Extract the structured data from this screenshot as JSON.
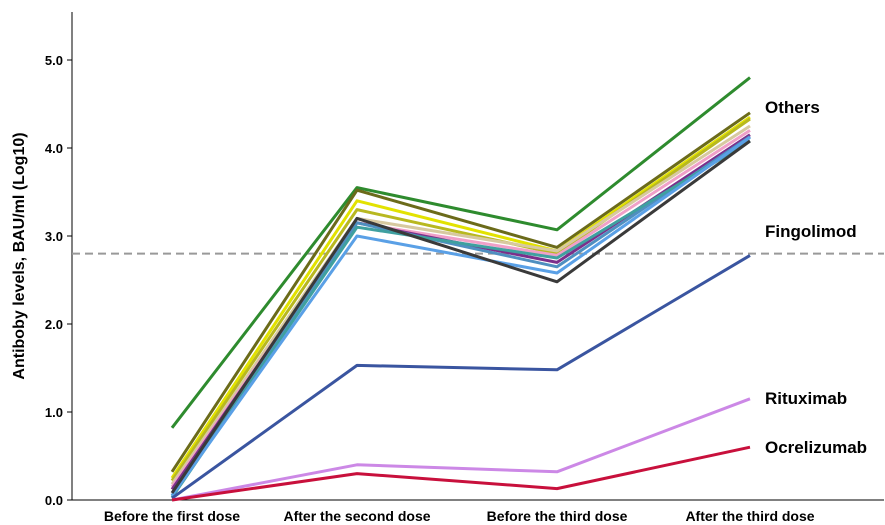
{
  "chart_data": {
    "type": "line",
    "title": "",
    "xlabel": "",
    "ylabel": "Antiboby levels, BAU/ml (Log10)",
    "categories": [
      "Before the first dose",
      "After the second dose",
      "Before the third dose",
      "After the third dose"
    ],
    "ylim": [
      0,
      5.5
    ],
    "yticks": [
      "0.0",
      "1.0",
      "2.0",
      "3.0",
      "4.0",
      "5.0"
    ],
    "grid": false,
    "reference_line": {
      "value": 2.8,
      "style": "dashed",
      "color": "#999999"
    },
    "annotations": [
      {
        "text": "Others",
        "near_value": 4.4
      },
      {
        "text": "Fingolimod",
        "near_value": 3.05
      },
      {
        "text": "Rituximab",
        "near_value": 1.15
      },
      {
        "text": "Ocrelizumab",
        "near_value": 0.6
      }
    ],
    "series": [
      {
        "color": "#2e8b2e",
        "values": [
          0.82,
          3.55,
          3.07,
          4.8
        ]
      },
      {
        "color": "#6b6b1a",
        "values": [
          0.32,
          3.52,
          2.87,
          4.4
        ]
      },
      {
        "color": "#e2e200",
        "values": [
          0.25,
          3.4,
          2.83,
          4.35
        ]
      },
      {
        "color": "#b8b820",
        "values": [
          0.22,
          3.3,
          2.8,
          4.33
        ]
      },
      {
        "color": "#d7c9a0",
        "values": [
          0.18,
          3.2,
          2.83,
          4.25
        ]
      },
      {
        "color": "#f0a0c8",
        "values": [
          0.15,
          3.15,
          2.78,
          4.2
        ]
      },
      {
        "color": "#7b2f8b",
        "values": [
          0.12,
          3.15,
          2.7,
          4.15
        ]
      },
      {
        "color": "#4f8fc0",
        "values": [
          0.05,
          3.15,
          2.65,
          4.13
        ]
      },
      {
        "color": "#3fa0a0",
        "values": [
          0.03,
          3.1,
          2.75,
          4.08
        ]
      },
      {
        "color": "#5aa0e6",
        "values": [
          0.05,
          3.0,
          2.58,
          4.12
        ]
      },
      {
        "color": "#3a3a3a",
        "values": [
          0.08,
          3.2,
          2.48,
          4.08
        ]
      },
      {
        "color": "#3a55a0",
        "values": [
          0.02,
          1.53,
          1.48,
          2.78
        ]
      },
      {
        "color": "#cc88e6",
        "values": [
          0.0,
          0.4,
          0.32,
          1.15
        ]
      },
      {
        "color": "#c8103c",
        "values": [
          0.0,
          0.3,
          0.13,
          0.6
        ]
      }
    ]
  }
}
